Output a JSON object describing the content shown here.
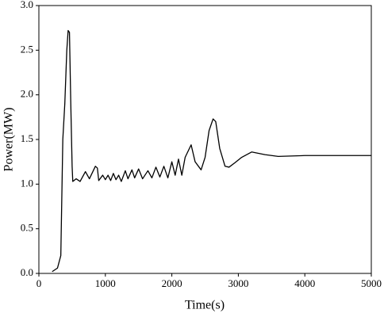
{
  "chart_data": {
    "type": "line",
    "xlabel": "Time(s)",
    "ylabel": "Power(MW)",
    "x": [
      200,
      280,
      330,
      360,
      390,
      420,
      440,
      460,
      480,
      500,
      510,
      560,
      620,
      700,
      760,
      850,
      880,
      900,
      960,
      1000,
      1040,
      1080,
      1120,
      1160,
      1200,
      1240,
      1300,
      1340,
      1400,
      1440,
      1500,
      1560,
      1640,
      1700,
      1760,
      1820,
      1880,
      1940,
      2000,
      2050,
      2100,
      2150,
      2200,
      2290,
      2350,
      2440,
      2500,
      2560,
      2620,
      2660,
      2720,
      2800,
      2860,
      2950,
      3050,
      3200,
      3400,
      3600,
      4000,
      4500,
      5000
    ],
    "values": [
      0.02,
      0.06,
      0.2,
      1.5,
      1.9,
      2.5,
      2.72,
      2.7,
      1.9,
      1.2,
      1.03,
      1.06,
      1.03,
      1.14,
      1.06,
      1.2,
      1.18,
      1.04,
      1.1,
      1.05,
      1.1,
      1.04,
      1.12,
      1.05,
      1.1,
      1.03,
      1.15,
      1.06,
      1.16,
      1.07,
      1.17,
      1.06,
      1.15,
      1.07,
      1.19,
      1.08,
      1.2,
      1.07,
      1.25,
      1.1,
      1.28,
      1.1,
      1.3,
      1.44,
      1.25,
      1.16,
      1.3,
      1.6,
      1.73,
      1.7,
      1.4,
      1.2,
      1.19,
      1.24,
      1.3,
      1.36,
      1.33,
      1.31,
      1.32,
      1.32,
      1.32
    ],
    "color": "#000000",
    "xlim": [
      0,
      5000
    ],
    "xticks": [
      0,
      1000,
      2000,
      3000,
      4000,
      5000
    ],
    "ylim": [
      0,
      3.0
    ],
    "yticks": [
      {
        "value": 0,
        "label": "0.0"
      },
      0.5,
      {
        "value": 1,
        "label": "1.0"
      },
      1.5,
      {
        "value": 2,
        "label": "2.0"
      },
      2.5,
      {
        "value": 3,
        "label": "3.0"
      }
    ],
    "grid": false
  }
}
